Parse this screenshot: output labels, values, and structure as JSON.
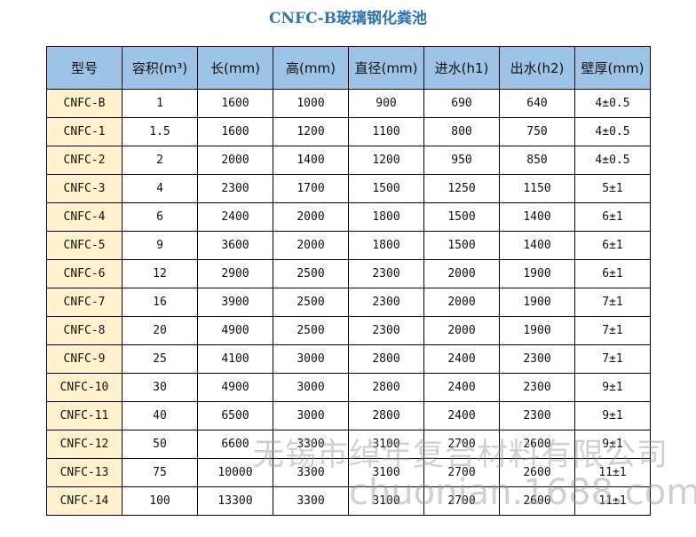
{
  "title": "CNFC-B玻璃钢化粪池",
  "table": {
    "headers": [
      "型号",
      "容积(m³)",
      "长(mm)",
      "高(mm)",
      "直径(mm)",
      "进水(h1)",
      "出水(h2)",
      "壁厚(mm)"
    ],
    "rows": [
      [
        "CNFC-B",
        "1",
        "1600",
        "1000",
        "900",
        "690",
        "640",
        "4±0.5"
      ],
      [
        "CNFC-1",
        "1.5",
        "1600",
        "1200",
        "1100",
        "800",
        "750",
        "4±0.5"
      ],
      [
        "CNFC-2",
        "2",
        "2000",
        "1400",
        "1200",
        "950",
        "850",
        "4±0.5"
      ],
      [
        "CNFC-3",
        "4",
        "2300",
        "1700",
        "1500",
        "1250",
        "1150",
        "5±1"
      ],
      [
        "CNFC-4",
        "6",
        "2400",
        "2000",
        "1800",
        "1500",
        "1400",
        "6±1"
      ],
      [
        "CNFC-5",
        "9",
        "3600",
        "2000",
        "1800",
        "1500",
        "1400",
        "6±1"
      ],
      [
        "CNFC-6",
        "12",
        "2900",
        "2500",
        "2300",
        "2000",
        "1900",
        "6±1"
      ],
      [
        "CNFC-7",
        "16",
        "3900",
        "2500",
        "2300",
        "2000",
        "1900",
        "7±1"
      ],
      [
        "CNFC-8",
        "20",
        "4900",
        "2500",
        "2300",
        "2000",
        "1900",
        "7±1"
      ],
      [
        "CNFC-9",
        "25",
        "4100",
        "3000",
        "2800",
        "2400",
        "2300",
        "7±1"
      ],
      [
        "CNFC-10",
        "30",
        "4900",
        "3000",
        "2800",
        "2400",
        "2300",
        "9±1"
      ],
      [
        "CNFC-11",
        "40",
        "6500",
        "3000",
        "2800",
        "2400",
        "2300",
        "9±1"
      ],
      [
        "CNFC-12",
        "50",
        "6600",
        "3300",
        "3100",
        "2700",
        "2600",
        "9±1"
      ],
      [
        "CNFC-13",
        "75",
        "10000",
        "3300",
        "3100",
        "2700",
        "2600",
        "11±1"
      ],
      [
        "CNFC-14",
        "100",
        "13300",
        "3300",
        "3100",
        "2700",
        "2600",
        "11±1"
      ]
    ]
  },
  "watermark": {
    "line1": "无锡市绰年复合材料有限公司",
    "line2": "chuonian.1688.com"
  },
  "colors": {
    "title": "#2e75b6",
    "header_bg": "#9dc3e6",
    "model_col_bg": "#fff2cc"
  }
}
